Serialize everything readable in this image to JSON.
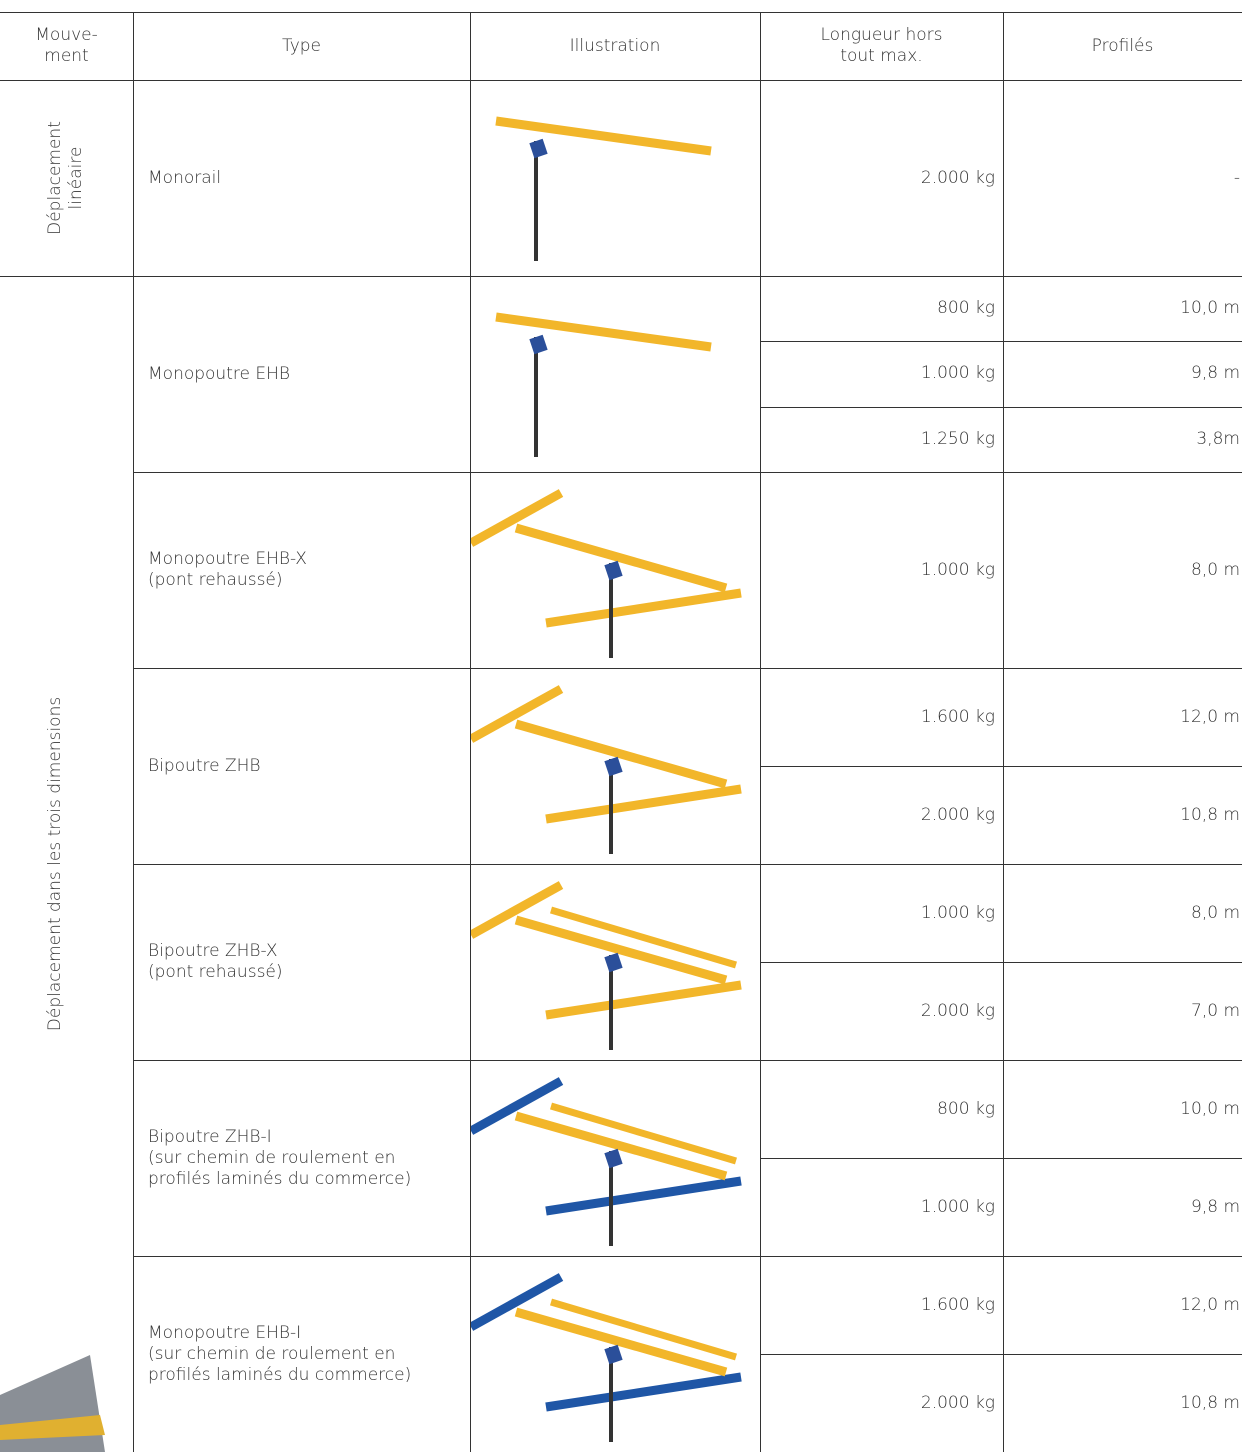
{
  "header": [
    "Mouve-\nment",
    "Type",
    "Illustration",
    "Longueur hors\ntout max.",
    "Profilés"
  ],
  "groups": [
    {
      "movement": "Déplacement\nlinéaire",
      "types": [
        {
          "type": "Monorail",
          "specs": [
            {
              "load": "2.000 kg",
              "length": "-"
            }
          ]
        }
      ]
    },
    {
      "movement": "Déplacement dans les trois dimensions",
      "types": [
        {
          "type": "Monopoutre EHB",
          "specs": [
            {
              "load": "800 kg",
              "length": "10,0 m"
            },
            {
              "load": "1.000 kg",
              "length": "9,8 m"
            },
            {
              "load": "1.250 kg",
              "length": "3,8m"
            }
          ]
        },
        {
          "type": "Monopoutre EHB-X\n(pont rehaussé)",
          "specs": [
            {
              "load": "1.000 kg",
              "length": "8,0 m"
            }
          ]
        },
        {
          "type": "Bipoutre ZHB",
          "specs": [
            {
              "load": "1.600 kg",
              "length": "12,0 m"
            },
            {
              "load": "2.000 kg",
              "length": "10,8 m"
            }
          ]
        },
        {
          "type": "Bipoutre ZHB-X\n(pont rehaussé)",
          "specs": [
            {
              "load": "1.000 kg",
              "length": "8,0 m"
            },
            {
              "load": "2.000 kg",
              "length": "7,0 m"
            }
          ]
        },
        {
          "type": "Bipoutre ZHB-I\n(sur chemin de roulement en\nprofilés laminés du commerce)",
          "specs": [
            {
              "load": "800 kg",
              "length": "10,0 m"
            },
            {
              "load": "1.000 kg",
              "length": "9,8 m"
            }
          ]
        },
        {
          "type": "Monopoutre EHB-I\n(sur chemin de roulement en\nprofilés laminés du commerce)",
          "specs": [
            {
              "load": "1.600 kg",
              "length": "12,0 m"
            },
            {
              "load": "2.000 kg",
              "length": "10,8 m"
            }
          ]
        }
      ]
    }
  ]
}
